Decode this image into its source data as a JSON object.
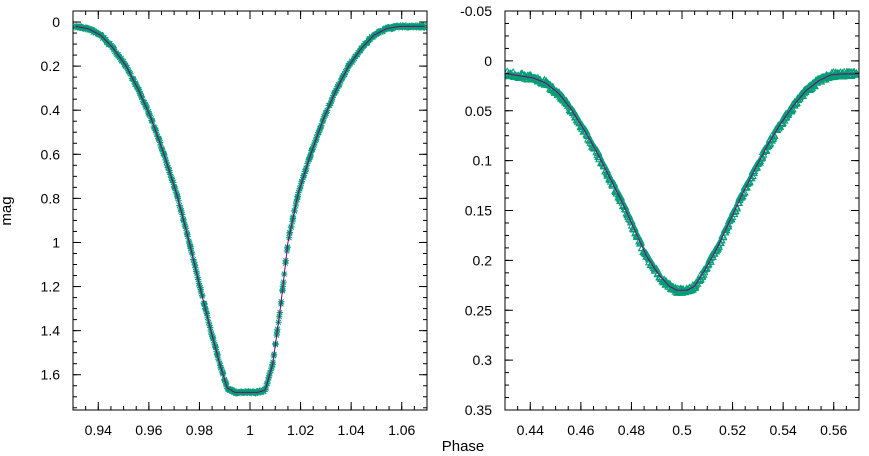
{
  "chart_data": [
    {
      "type": "scatter",
      "panel": "left",
      "title": "",
      "xlabel": "",
      "ylabel": "mag",
      "xlim": [
        0.93,
        1.07
      ],
      "ylim": [
        1.76,
        -0.05
      ],
      "y_inverted": true,
      "grid": false,
      "xticks": [
        0.94,
        0.96,
        0.98,
        1.0,
        1.02,
        1.04,
        1.06
      ],
      "xtick_labels": [
        "0.94",
        "0.96",
        "0.98",
        "1",
        "1.02",
        "1.04",
        "1.06"
      ],
      "yticks": [
        0,
        0.2,
        0.4,
        0.6,
        0.8,
        1.0,
        1.2,
        1.4,
        1.6
      ],
      "ytick_labels": [
        "0",
        "0.2",
        "0.4",
        "0.6",
        "0.8",
        "1",
        "1.2",
        "1.4",
        "1.6"
      ],
      "series": [
        {
          "marker": "star",
          "color": "#009e73",
          "x": [
            0.931,
            0.936,
            0.941,
            0.946,
            0.951,
            0.956,
            0.961,
            0.966,
            0.971,
            0.976,
            0.981,
            0.985,
            0.988,
            0.991,
            0.994,
            0.997,
            1.0,
            1.003,
            1.006,
            1.009,
            1.012,
            1.015,
            1.019,
            1.024,
            1.029,
            1.034,
            1.039,
            1.044,
            1.049,
            1.054,
            1.059,
            1.064,
            1.069
          ],
          "y": [
            0.02,
            0.03,
            0.06,
            0.12,
            0.2,
            0.31,
            0.44,
            0.6,
            0.78,
            1.0,
            1.24,
            1.42,
            1.55,
            1.66,
            1.68,
            1.68,
            1.68,
            1.68,
            1.67,
            1.55,
            1.3,
            1.0,
            0.78,
            0.6,
            0.44,
            0.31,
            0.2,
            0.12,
            0.06,
            0.03,
            0.02,
            0.02,
            0.02
          ]
        },
        {
          "marker": "line",
          "color": "#800080",
          "x": [
            0.931,
            0.936,
            0.941,
            0.946,
            0.951,
            0.956,
            0.961,
            0.966,
            0.971,
            0.976,
            0.981,
            0.985,
            0.988,
            0.991,
            0.994,
            0.997,
            1.0,
            1.003,
            1.006,
            1.009,
            1.012,
            1.015,
            1.019,
            1.024,
            1.029,
            1.034,
            1.039,
            1.044,
            1.049,
            1.054,
            1.059,
            1.064,
            1.069
          ],
          "y": [
            0.02,
            0.03,
            0.06,
            0.12,
            0.2,
            0.31,
            0.44,
            0.6,
            0.78,
            1.0,
            1.24,
            1.42,
            1.55,
            1.66,
            1.68,
            1.68,
            1.68,
            1.68,
            1.67,
            1.55,
            1.3,
            1.0,
            0.78,
            0.6,
            0.44,
            0.31,
            0.2,
            0.12,
            0.06,
            0.03,
            0.02,
            0.02,
            0.02
          ]
        }
      ]
    },
    {
      "type": "scatter",
      "panel": "right",
      "title": "",
      "xlabel": "Phase",
      "ylabel": "",
      "xlim": [
        0.43,
        0.57
      ],
      "ylim": [
        0.35,
        -0.05
      ],
      "y_inverted": true,
      "grid": false,
      "xticks": [
        0.44,
        0.46,
        0.48,
        0.5,
        0.52,
        0.54,
        0.56
      ],
      "xtick_labels": [
        "0.44",
        "0.46",
        "0.48",
        "0.5",
        "0.52",
        "0.54",
        "0.56"
      ],
      "yticks": [
        -0.05,
        0,
        0.05,
        0.1,
        0.15,
        0.2,
        0.25,
        0.3,
        0.35
      ],
      "ytick_labels": [
        "-0.05",
        "0",
        "0.05",
        "0.1",
        "0.15",
        "0.2",
        "0.25",
        "0.3",
        "0.35"
      ],
      "series": [
        {
          "marker": "triangle",
          "color": "#009e73",
          "x": [
            0.431,
            0.436,
            0.441,
            0.446,
            0.451,
            0.456,
            0.461,
            0.466,
            0.471,
            0.476,
            0.481,
            0.486,
            0.491,
            0.495,
            0.498,
            0.5,
            0.502,
            0.505,
            0.509,
            0.514,
            0.519,
            0.524,
            0.529,
            0.534,
            0.539,
            0.544,
            0.549,
            0.554,
            0.559,
            0.564,
            0.569
          ],
          "y": [
            0.013,
            0.015,
            0.017,
            0.022,
            0.032,
            0.048,
            0.068,
            0.09,
            0.115,
            0.14,
            0.168,
            0.196,
            0.215,
            0.226,
            0.23,
            0.23,
            0.23,
            0.226,
            0.21,
            0.187,
            0.16,
            0.133,
            0.108,
            0.084,
            0.063,
            0.045,
            0.03,
            0.02,
            0.014,
            0.013,
            0.013
          ]
        },
        {
          "marker": "line",
          "color": "#800080",
          "x": [
            0.431,
            0.436,
            0.441,
            0.446,
            0.451,
            0.456,
            0.461,
            0.466,
            0.471,
            0.476,
            0.481,
            0.486,
            0.491,
            0.495,
            0.498,
            0.5,
            0.502,
            0.505,
            0.509,
            0.514,
            0.519,
            0.524,
            0.529,
            0.534,
            0.539,
            0.544,
            0.549,
            0.554,
            0.559,
            0.564,
            0.569
          ],
          "y": [
            0.013,
            0.015,
            0.017,
            0.022,
            0.032,
            0.048,
            0.068,
            0.09,
            0.115,
            0.14,
            0.168,
            0.196,
            0.215,
            0.226,
            0.23,
            0.23,
            0.23,
            0.226,
            0.21,
            0.187,
            0.16,
            0.133,
            0.108,
            0.084,
            0.063,
            0.045,
            0.03,
            0.02,
            0.014,
            0.013,
            0.013
          ]
        }
      ]
    }
  ]
}
